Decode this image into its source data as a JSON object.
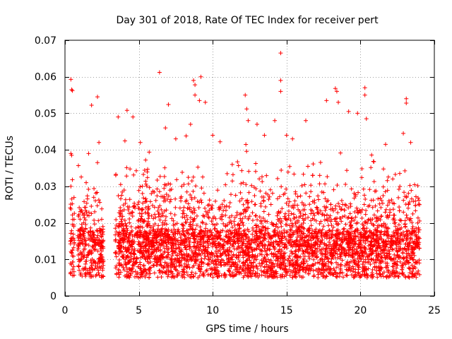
{
  "chart_data": {
    "type": "scatter",
    "title": "Day 301 of 2018, Rate Of TEC Index for receiver pert",
    "xlabel": "GPS time / hours",
    "ylabel": "ROTI / TECUs",
    "xlim": [
      0,
      25
    ],
    "ylim": [
      0,
      0.07
    ],
    "xticks": [
      0,
      5,
      10,
      15,
      20,
      25
    ],
    "xtick_labels": [
      "0",
      "5",
      "10",
      "15",
      "20",
      "25"
    ],
    "yticks": [
      0,
      0.01,
      0.02,
      0.03,
      0.04,
      0.05,
      0.06,
      0.07
    ],
    "ytick_labels": [
      "0",
      "0.01",
      "0.02",
      "0.03",
      "0.04",
      "0.05",
      "0.06",
      "0.07"
    ],
    "grid": true,
    "marker": "+",
    "marker_color": "#ff0000",
    "series": [
      {
        "name": "ROTI",
        "note": "dense cloud of roughly 6000 points, 0.4-24 h, mostly 0.005-0.03 TECU; representative outliers listed",
        "points": [
          [
            0.4,
            0.0593
          ],
          [
            0.45,
            0.0565
          ],
          [
            0.5,
            0.0562
          ],
          [
            0.4,
            0.039
          ],
          [
            0.45,
            0.0385
          ],
          [
            0.5,
            0.0318
          ],
          [
            0.4,
            0.03
          ],
          [
            0.5,
            0.0195
          ],
          [
            0.4,
            0.015
          ],
          [
            0.5,
            0.0125
          ],
          [
            1.6,
            0.039
          ],
          [
            1.8,
            0.0522
          ],
          [
            2.2,
            0.0545
          ],
          [
            2.3,
            0.042
          ],
          [
            2.2,
            0.0365
          ],
          [
            3.6,
            0.049
          ],
          [
            4.2,
            0.0508
          ],
          [
            4.6,
            0.049
          ],
          [
            5.1,
            0.042
          ],
          [
            6.4,
            0.0612
          ],
          [
            6.8,
            0.046
          ],
          [
            7.0,
            0.0524
          ],
          [
            7.5,
            0.043
          ],
          [
            8.2,
            0.0438
          ],
          [
            8.5,
            0.047
          ],
          [
            8.7,
            0.059
          ],
          [
            8.8,
            0.0578
          ],
          [
            8.8,
            0.055
          ],
          [
            9.2,
            0.06
          ],
          [
            9.1,
            0.0535
          ],
          [
            9.5,
            0.053
          ],
          [
            10.0,
            0.044
          ],
          [
            10.5,
            0.0422
          ],
          [
            12.2,
            0.055
          ],
          [
            12.3,
            0.0512
          ],
          [
            12.4,
            0.048
          ],
          [
            13.0,
            0.047
          ],
          [
            13.5,
            0.044
          ],
          [
            14.2,
            0.048
          ],
          [
            14.6,
            0.0665
          ],
          [
            14.6,
            0.059
          ],
          [
            14.6,
            0.056
          ],
          [
            15.0,
            0.044
          ],
          [
            15.4,
            0.043
          ],
          [
            16.3,
            0.048
          ],
          [
            17.7,
            0.0535
          ],
          [
            18.3,
            0.0568
          ],
          [
            18.4,
            0.056
          ],
          [
            18.5,
            0.053
          ],
          [
            19.2,
            0.0505
          ],
          [
            19.8,
            0.05
          ],
          [
            20.3,
            0.057
          ],
          [
            20.3,
            0.055
          ],
          [
            20.4,
            0.0485
          ],
          [
            21.7,
            0.0415
          ],
          [
            22.9,
            0.0445
          ],
          [
            23.1,
            0.054
          ],
          [
            23.1,
            0.0528
          ],
          [
            23.4,
            0.042
          ],
          [
            24.0,
            0.025
          ]
        ]
      }
    ]
  }
}
